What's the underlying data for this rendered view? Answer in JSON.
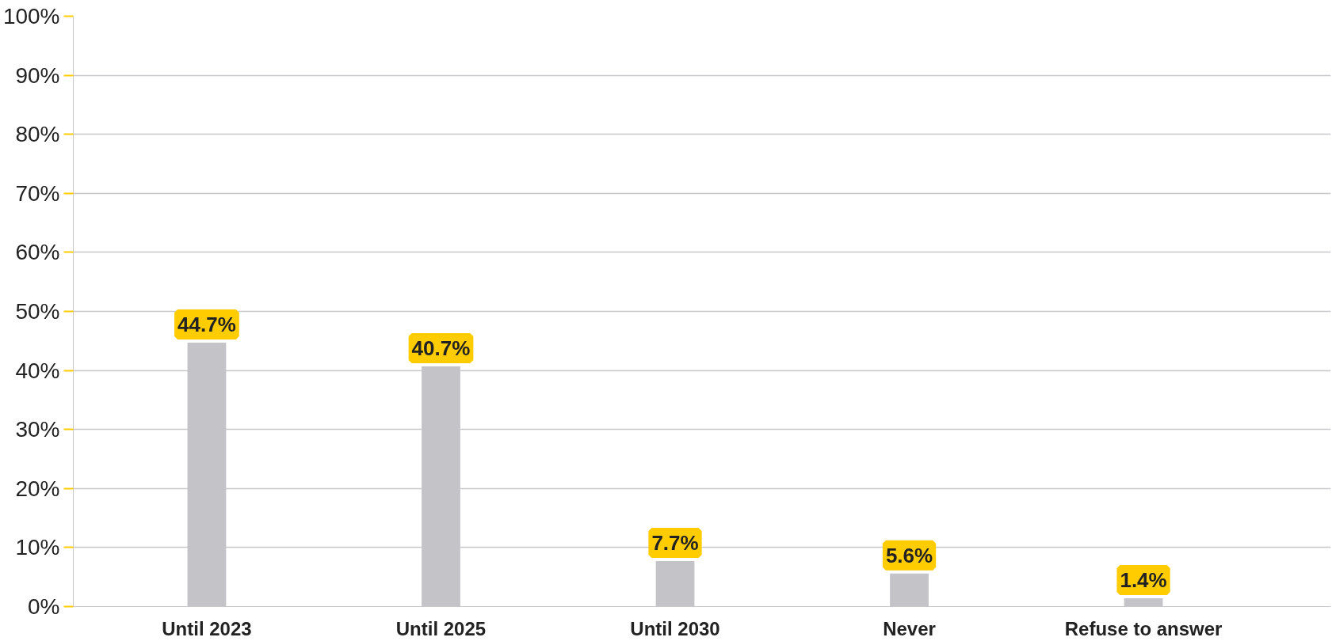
{
  "chart_data": {
    "type": "bar",
    "categories": [
      "Until 2023",
      "Until 2025",
      "Until 2030",
      "Never",
      "Refuse to answer"
    ],
    "values": [
      44.7,
      40.7,
      7.7,
      5.6,
      1.4
    ],
    "value_labels": [
      "44.7%",
      "40.7%",
      "7.7%",
      "5.6%",
      "1.4%"
    ],
    "color": "#c3c3c8",
    "ylim": [
      0,
      100
    ],
    "yticks": [
      {
        "value": 0,
        "label": "0%"
      },
      {
        "value": 10,
        "label": "10%"
      },
      {
        "value": 20,
        "label": "20%"
      },
      {
        "value": 30,
        "label": "30%"
      },
      {
        "value": 40,
        "label": "40%"
      },
      {
        "value": 50,
        "label": "50%"
      },
      {
        "value": 60,
        "label": "60%"
      },
      {
        "value": 70,
        "label": "70%"
      },
      {
        "value": 80,
        "label": "80%"
      },
      {
        "value": 90,
        "label": "90%"
      },
      {
        "value": 100,
        "label": "100%"
      }
    ],
    "grid": "y"
  }
}
